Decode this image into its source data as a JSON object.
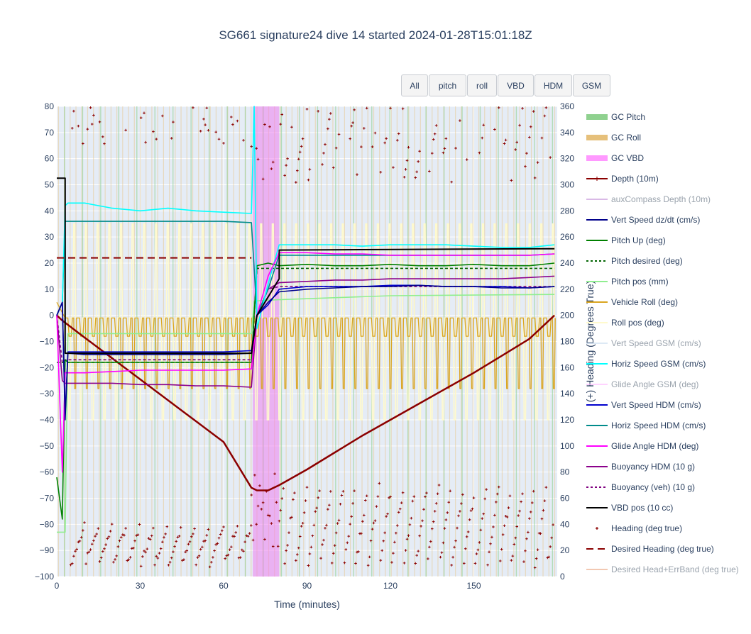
{
  "title": "SG661 signature24 dive 14 started 2024-01-28T15:01:18Z",
  "buttons": [
    "All",
    "pitch",
    "roll",
    "VBD",
    "HDM",
    "GSM"
  ],
  "chart_data": {
    "type": "line",
    "title": "SG661 signature24 dive 14 started 2024-01-28T15:01:18Z",
    "xlabel": "Time (minutes)",
    "ylabel": "",
    "y2label": "(+) Heading (Degrees True)",
    "xlim": [
      0,
      180
    ],
    "ylim": [
      -100,
      80
    ],
    "y2lim": [
      0,
      360
    ],
    "xticks": [
      0,
      30,
      60,
      90,
      120,
      150
    ],
    "yticks": [
      -100,
      -90,
      -80,
      -70,
      -60,
      -50,
      -40,
      -30,
      -20,
      -10,
      0,
      10,
      20,
      30,
      40,
      50,
      60,
      70,
      80
    ],
    "y2ticks": [
      0,
      20,
      40,
      60,
      80,
      100,
      120,
      140,
      160,
      180,
      200,
      220,
      240,
      260,
      280,
      300,
      320,
      340,
      360
    ],
    "grid": true,
    "legend_position": "right",
    "shaded_regions": [
      {
        "name": "GC VBD",
        "x": [
          70.5,
          80
        ],
        "color": "#ee82ee"
      }
    ],
    "series": [
      {
        "name": "GC Pitch",
        "color": "#8fd18f",
        "visible": true
      },
      {
        "name": "GC Roll",
        "color": "#e6c07b",
        "visible": true
      },
      {
        "name": "GC VBD",
        "color": "#ff99ff",
        "visible": true
      },
      {
        "name": "Depth (10m)",
        "color": "#8b0000",
        "visible": true,
        "x": [
          0,
          2,
          10,
          20,
          30,
          40,
          50,
          60,
          70,
          72,
          76,
          80,
          90,
          100,
          110,
          120,
          130,
          140,
          150,
          160,
          170,
          179
        ],
        "y": [
          0,
          -2,
          -8.5,
          -16.5,
          -24.5,
          -32.5,
          -40.5,
          -48.5,
          -66,
          -67,
          -67,
          -65,
          -59,
          -52.5,
          -46,
          -40,
          -34,
          -28,
          -22,
          -15.5,
          -9,
          0
        ]
      },
      {
        "name": "auxCompass Depth (10m)",
        "color": "#c08bd6",
        "visible": false
      },
      {
        "name": "Vert Speed dz/dt (cm/s)",
        "color": "#00008b",
        "visible": true,
        "x": [
          0,
          2,
          3,
          4,
          10,
          20,
          30,
          40,
          50,
          60,
          70,
          72,
          76,
          80,
          90,
          100,
          110,
          120,
          130,
          140,
          150,
          160,
          170,
          179
        ],
        "y": [
          0,
          5,
          -40,
          -14.5,
          -15,
          -15,
          -15,
          -15,
          -15,
          -15,
          -14.5,
          0,
          5,
          9,
          10,
          10.5,
          11,
          11,
          11.5,
          11,
          11,
          10.5,
          10.5,
          11
        ]
      },
      {
        "name": "Pitch Up (deg)",
        "color": "#008000",
        "visible": true,
        "x": [
          0,
          2,
          3,
          4,
          10,
          20,
          30,
          40,
          50,
          60,
          70,
          72,
          76,
          80,
          90,
          100,
          110,
          120,
          130,
          140,
          150,
          160,
          170,
          179
        ],
        "y": [
          -62,
          -78,
          -17,
          -18,
          -18,
          -18,
          -18,
          -18,
          -18,
          -18,
          -18,
          19,
          20,
          19,
          19.5,
          19,
          19,
          19.5,
          19,
          19,
          19.5,
          19,
          19,
          20
        ]
      },
      {
        "name": "Pitch desired (deg)",
        "color": "#006400",
        "visible": true,
        "dash": true,
        "x": [
          0,
          4,
          70,
          72,
          80,
          179
        ],
        "y": [
          -18,
          -18,
          -18,
          18,
          18,
          18
        ]
      },
      {
        "name": "Pitch pos (mm)",
        "color": "#90ee90",
        "visible": true,
        "x": [
          0,
          3,
          4,
          70,
          71,
          80,
          120,
          179
        ],
        "y": [
          -83,
          -83,
          -7,
          -7,
          5.5,
          6,
          7.5,
          8
        ]
      },
      {
        "name": "Vehicle Roll (deg)",
        "color": "#daa520",
        "visible": true,
        "x": [
          0,
          4,
          10,
          20,
          30,
          40,
          50,
          60,
          70,
          80,
          90,
          100,
          110,
          120,
          130,
          140,
          150,
          160,
          170,
          179
        ],
        "y": [
          5,
          -1,
          -1,
          -1,
          -1,
          -1,
          -1,
          -1,
          -1,
          -1,
          -1,
          -1,
          -1,
          -1,
          -1,
          -1,
          -1,
          -1,
          -1,
          -1
        ]
      },
      {
        "name": "Roll pos (deg)",
        "color": "#fffacd",
        "visible": true,
        "x": [
          0,
          4,
          70,
          80,
          179
        ],
        "y": [
          0,
          -1,
          -1,
          -1,
          -1
        ]
      },
      {
        "name": "Vert Speed GSM (cm/s)",
        "color": "#c6dbef",
        "visible": false
      },
      {
        "name": "Horiz Speed GSM (cm/s)",
        "color": "#00ffff",
        "visible": true,
        "x": [
          0,
          2,
          3,
          4,
          10,
          20,
          30,
          40,
          50,
          60,
          70,
          71,
          72,
          76,
          80,
          90,
          100,
          110,
          120,
          130,
          140,
          150,
          160,
          170,
          179
        ],
        "y": [
          0,
          5,
          42,
          43,
          43,
          41,
          40,
          41,
          40,
          39.5,
          39,
          80,
          -5,
          12,
          27,
          27,
          27,
          26.5,
          27,
          27,
          27,
          26.5,
          26,
          26,
          27
        ]
      },
      {
        "name": "Glide Angle GSM (deg)",
        "color": "#ffb6ff",
        "visible": false
      },
      {
        "name": "Vert Speed HDM (cm/s)",
        "color": "#0000cd",
        "visible": true,
        "x": [
          0,
          2,
          3,
          4,
          10,
          20,
          30,
          40,
          50,
          60,
          70,
          72,
          76,
          80,
          90,
          100,
          110,
          120,
          130,
          140,
          150,
          160,
          170,
          179
        ],
        "y": [
          0,
          5,
          -38,
          -14,
          -14,
          -14,
          -14,
          -14,
          -14,
          -14,
          -13.5,
          0,
          4,
          10,
          11,
          11,
          11,
          11.5,
          11.5,
          11,
          11,
          11,
          10.5,
          11
        ]
      },
      {
        "name": "Horiz Speed HDM (cm/s)",
        "color": "#008b8b",
        "visible": true,
        "x": [
          0,
          2,
          3,
          4,
          10,
          20,
          30,
          40,
          50,
          60,
          70,
          72,
          76,
          80,
          90,
          100,
          110,
          120,
          130,
          140,
          150,
          160,
          170,
          179
        ],
        "y": [
          0,
          5,
          36,
          36,
          36,
          36,
          36,
          36,
          36,
          36,
          35.5,
          0,
          10,
          23,
          23,
          23,
          23,
          23,
          23,
          23,
          23,
          23,
          23,
          23.5
        ]
      },
      {
        "name": "Glide Angle HDM (deg)",
        "color": "#ff00ff",
        "visible": true,
        "x": [
          0,
          2,
          3,
          4,
          10,
          20,
          30,
          40,
          50,
          60,
          70,
          72,
          76,
          80,
          90,
          100,
          110,
          120,
          130,
          140,
          150,
          160,
          170,
          179
        ],
        "y": [
          0,
          -60,
          -22,
          -22,
          -22,
          -21.5,
          -21,
          -21,
          -21,
          -21,
          -20.5,
          0,
          15,
          24,
          24,
          23.5,
          23.5,
          23,
          23,
          23,
          23,
          23,
          23,
          23.5
        ]
      },
      {
        "name": "Buoyancy HDM (10 g)",
        "color": "#8b008b",
        "visible": true,
        "x": [
          0,
          2,
          3,
          4,
          10,
          20,
          30,
          40,
          50,
          60,
          70,
          72,
          76,
          80,
          90,
          100,
          110,
          120,
          130,
          140,
          150,
          160,
          170,
          179
        ],
        "y": [
          0,
          -25,
          -26,
          -26,
          -26,
          -26,
          -26.5,
          -26.5,
          -27,
          -27,
          -27.5,
          0,
          10,
          12.5,
          13,
          13.5,
          13.5,
          14,
          14,
          14,
          14,
          14,
          14.5,
          15
        ]
      },
      {
        "name": "Buoyancy (veh) (10 g)",
        "color": "#800080",
        "visible": true,
        "dash": true,
        "x": [
          0,
          2,
          3,
          4,
          70,
          72,
          76,
          80,
          179
        ],
        "y": [
          0,
          -18,
          -17,
          -17,
          -17,
          0,
          10,
          11,
          11
        ]
      },
      {
        "name": "VBD pos (10 cc)",
        "color": "#000000",
        "visible": true,
        "x": [
          0,
          3,
          3.01,
          70,
          72,
          80,
          80.01,
          179
        ],
        "y": [
          52.5,
          52.5,
          -14.5,
          -14.5,
          0,
          14,
          25,
          25.5
        ]
      },
      {
        "name": "Heading (deg true)",
        "color": "#8b0000",
        "visible": true,
        "marker": "cross",
        "axis": "y2"
      },
      {
        "name": "Desired Heading (deg true)",
        "color": "#8b0000",
        "visible": true,
        "dash": true,
        "axis": "y2",
        "x": [
          0,
          70
        ],
        "y": [
          244,
          244
        ]
      },
      {
        "name": "Desired Head+ErrBand (deg true)",
        "color": "#e9a37f",
        "visible": false
      }
    ]
  }
}
